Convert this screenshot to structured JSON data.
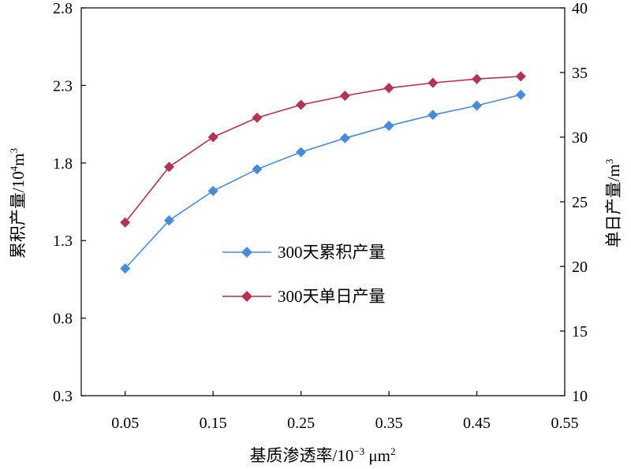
{
  "chart_data": {
    "type": "line",
    "x": [
      0.05,
      0.1,
      0.15,
      0.2,
      0.25,
      0.3,
      0.35,
      0.4,
      0.45,
      0.5
    ],
    "xlabel_text": "基质渗透率/10",
    "xlabel_sup": "−3",
    "xlabel_unit": " μm",
    "xlabel_unit_sup": "2",
    "ylabel_left_text": "累积产量/10",
    "ylabel_left_sup": "4",
    "ylabel_left_unit": "m",
    "ylabel_left_unit_sup": "3",
    "ylabel_right_text": "单日产量/m",
    "ylabel_right_sup": "3",
    "xlim": [
      0.0,
      0.55
    ],
    "ylim_left": [
      0.3,
      2.8
    ],
    "ylim_right": [
      10,
      40
    ],
    "xticks": [
      "0.05",
      "0.15",
      "0.25",
      "0.35",
      "0.45",
      "0.55"
    ],
    "xtick_values": [
      0.05,
      0.15,
      0.25,
      0.35,
      0.45,
      0.55
    ],
    "yticks_left": [
      "0.3",
      "0.8",
      "1.3",
      "1.8",
      "2.3",
      "2.8"
    ],
    "ytick_left_values": [
      0.3,
      0.8,
      1.3,
      1.8,
      2.3,
      2.8
    ],
    "yticks_right": [
      "10",
      "15",
      "20",
      "25",
      "30",
      "35",
      "40"
    ],
    "ytick_right_values": [
      10,
      15,
      20,
      25,
      30,
      35,
      40
    ],
    "legend_position": "center",
    "series": [
      {
        "name": "300天累积产量",
        "axis": "left",
        "color": "#4a8bd8",
        "marker": "diamond",
        "values": [
          1.12,
          1.43,
          1.62,
          1.76,
          1.87,
          1.96,
          2.04,
          2.11,
          2.17,
          2.24
        ]
      },
      {
        "name": "300天单日产量",
        "axis": "right",
        "color": "#b3344f",
        "marker": "diamond",
        "values": [
          23.4,
          27.7,
          30.0,
          31.5,
          32.5,
          33.2,
          33.8,
          34.2,
          34.5,
          34.7
        ]
      }
    ]
  }
}
